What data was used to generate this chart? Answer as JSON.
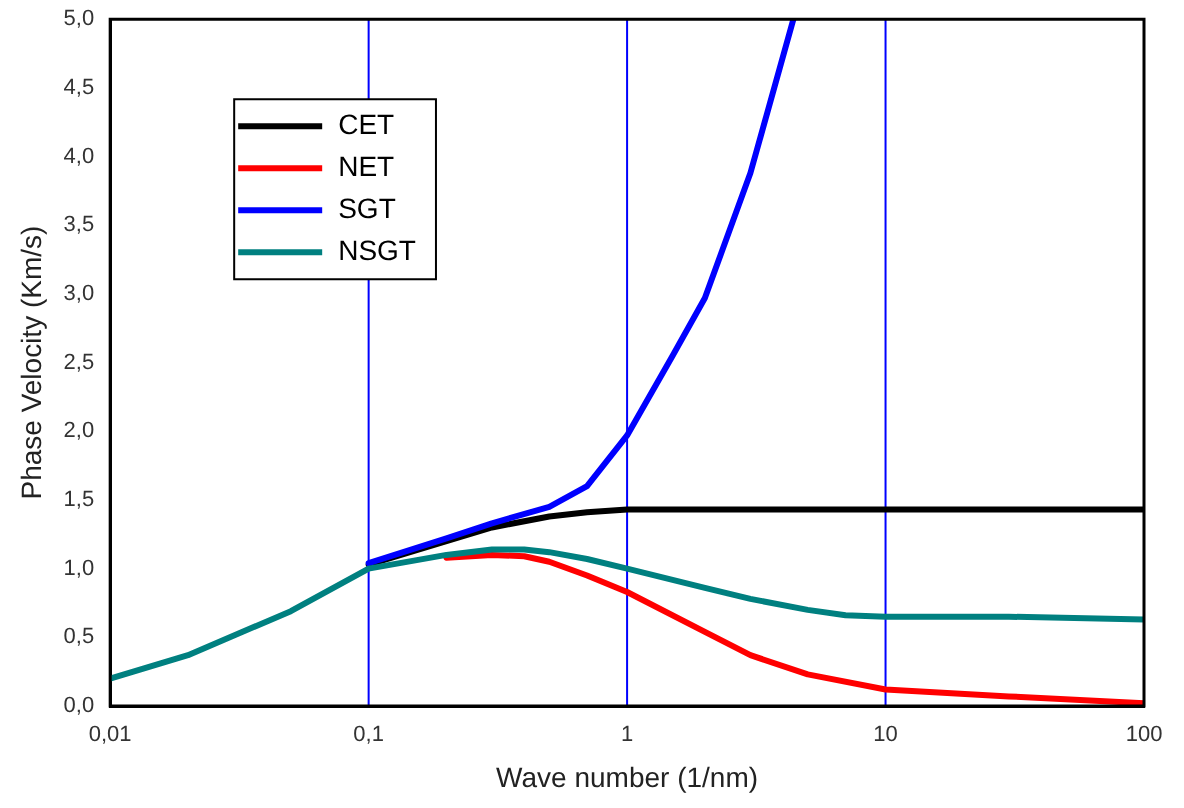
{
  "chart_data": {
    "type": "line",
    "xlabel": "Wave number (1/nm)",
    "ylabel": "Phase Velocity (Km/s)",
    "log": "x",
    "grid": false,
    "legend": "top left",
    "marker": "none",
    "line_style": "solid",
    "xlim": [
      0.01,
      100
    ],
    "xticks": [
      {
        "value": 0.01,
        "label": "0,01"
      },
      {
        "value": 0.1,
        "label": "0,1"
      },
      1,
      10,
      100
    ],
    "ylim": [
      0,
      5
    ],
    "yticks": [
      {
        "value": 0,
        "label": "0,0"
      },
      {
        "value": 0.5,
        "label": "0,5"
      },
      {
        "value": 1,
        "label": "1,0"
      },
      {
        "value": 1.5,
        "label": "1,5"
      },
      {
        "value": 2,
        "label": "2,0"
      },
      {
        "value": 2.5,
        "label": "2,5"
      },
      {
        "value": 3,
        "label": "3,0"
      },
      {
        "value": 3.5,
        "label": "3,5"
      },
      {
        "value": 4,
        "label": "4,0"
      },
      {
        "value": 4.5,
        "label": "4,5"
      },
      {
        "value": 5,
        "label": "5,0"
      }
    ],
    "ref_lines": [
      {
        "axis": "x",
        "value": 0.1,
        "color": "#0000ff"
      },
      {
        "axis": "x",
        "value": 1,
        "color": "#0000ff"
      },
      {
        "axis": "x",
        "value": 10,
        "color": "#0000ff"
      }
    ],
    "series": [
      {
        "name": "CET",
        "color": "#000000",
        "x": [
          0.1,
          0.2,
          0.3,
          0.5,
          0.7,
          1,
          3,
          10,
          100
        ],
        "values": [
          1.03,
          1.2,
          1.3,
          1.38,
          1.41,
          1.43,
          1.43,
          1.43,
          1.43
        ]
      },
      {
        "name": "NET",
        "color": "#ff0000",
        "x": [
          0.2,
          0.3,
          0.4,
          0.5,
          0.7,
          1,
          2,
          3,
          5,
          10,
          30,
          100
        ],
        "values": [
          1.08,
          1.1,
          1.09,
          1.05,
          0.95,
          0.83,
          0.54,
          0.37,
          0.23,
          0.12,
          0.07,
          0.02
        ]
      },
      {
        "name": "SGT",
        "color": "#0000ff",
        "x": [
          0.1,
          0.2,
          0.3,
          0.5,
          0.7,
          1,
          1.5,
          2,
          3,
          4.4
        ],
        "values": [
          1.04,
          1.22,
          1.33,
          1.45,
          1.6,
          1.97,
          2.55,
          2.97,
          3.88,
          5.0
        ]
      },
      {
        "name": "NSGT",
        "color": "#008080",
        "x": [
          0.01,
          0.02,
          0.05,
          0.1,
          0.2,
          0.3,
          0.4,
          0.5,
          0.7,
          1,
          2,
          3,
          5,
          7,
          10,
          30,
          100
        ],
        "values": [
          0.2,
          0.37,
          0.69,
          1.0,
          1.1,
          1.14,
          1.14,
          1.12,
          1.07,
          1.0,
          0.86,
          0.78,
          0.7,
          0.66,
          0.65,
          0.65,
          0.63
        ]
      }
    ]
  }
}
